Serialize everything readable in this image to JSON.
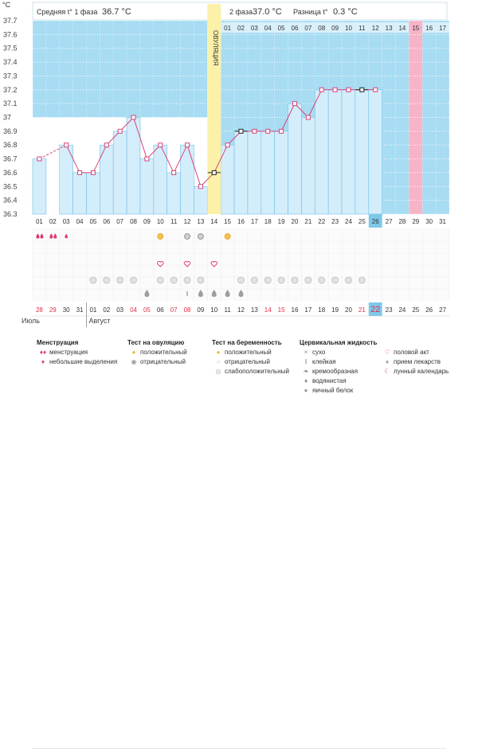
{
  "header": {
    "phase1_label": "Средняя t° 1 фаза",
    "phase1_value": "36.7 °C",
    "phase2_label": "2 фаза",
    "phase2_value": "37.0 °C",
    "diff_label": "Разница t°",
    "diff_value": "0.3 °C"
  },
  "chart_data": {
    "type": "line",
    "title": "",
    "ylabel": "°C",
    "ylim": [
      36.3,
      37.7
    ],
    "yticks": [
      "36.3",
      "36.4",
      "36.5",
      "36.6",
      "36.7",
      "36.8",
      "36.9",
      "37",
      "37.1",
      "37.2",
      "37.3",
      "37.4",
      "37.5",
      "37.6",
      "37.7"
    ],
    "ovulation_label": "ОВУЛЯЦИЯ",
    "ovulation_index": 13,
    "phase2_top_days": [
      "01",
      "02",
      "03",
      "04",
      "05",
      "06",
      "07",
      "08",
      "09",
      "10",
      "11",
      "12",
      "13",
      "14",
      "15",
      "16",
      "17"
    ],
    "highlight_top_index": 14,
    "cycle_days": [
      "01",
      "02",
      "03",
      "04",
      "05",
      "06",
      "07",
      "08",
      "09",
      "10",
      "11",
      "12",
      "13",
      "14",
      "15",
      "16",
      "17",
      "18",
      "19",
      "20",
      "21",
      "22",
      "23",
      "24",
      "25",
      "26",
      "27",
      "28",
      "29",
      "30",
      "31"
    ],
    "today_index": 25,
    "temperatures": [
      36.7,
      null,
      36.8,
      36.6,
      36.6,
      36.8,
      36.9,
      37.0,
      36.7,
      36.8,
      36.6,
      36.8,
      36.5,
      36.6,
      36.8,
      36.9,
      36.9,
      36.9,
      36.9,
      37.1,
      37.0,
      37.2,
      37.2,
      37.2,
      37.2,
      37.2,
      null,
      null,
      null,
      null,
      null
    ],
    "coverline_points": [
      13,
      15,
      24
    ],
    "dates": [
      "28",
      "29",
      "30",
      "31",
      "01",
      "02",
      "03",
      "04",
      "05",
      "06",
      "07",
      "08",
      "09",
      "10",
      "11",
      "12",
      "13",
      "14",
      "15",
      "16",
      "17",
      "18",
      "19",
      "20",
      "21",
      "22",
      "23",
      "24",
      "25",
      "26",
      "27"
    ],
    "red_dates": [
      0,
      1,
      7,
      8,
      10,
      11,
      17,
      18,
      24,
      25
    ],
    "today_date_index": 25,
    "month_july": "Июль",
    "month_august": "Август",
    "month_july_at": 0,
    "month_august_at": 4,
    "menstruation": [
      2,
      2,
      1,
      0,
      0,
      0,
      0,
      0,
      0,
      0,
      0,
      0,
      0,
      0,
      0,
      0,
      0,
      0,
      0,
      0,
      0,
      0,
      0,
      0,
      0,
      0,
      0,
      0,
      0,
      0,
      0
    ],
    "ovulation_test": [
      0,
      0,
      0,
      0,
      0,
      0,
      0,
      0,
      0,
      1,
      0,
      2,
      2,
      0,
      1,
      0,
      0,
      0,
      0,
      0,
      0,
      0,
      0,
      0,
      0,
      0,
      0,
      0,
      0,
      0,
      0
    ],
    "intercourse": [
      0,
      0,
      0,
      0,
      0,
      0,
      0,
      0,
      0,
      1,
      0,
      1,
      0,
      1,
      0,
      0,
      0,
      0,
      0,
      0,
      0,
      0,
      0,
      0,
      0,
      0,
      0,
      0,
      0,
      0,
      0
    ],
    "medication": [
      0,
      0,
      0,
      0,
      1,
      1,
      1,
      1,
      0,
      1,
      1,
      1,
      1,
      0,
      0,
      1,
      1,
      1,
      1,
      1,
      1,
      1,
      1,
      1,
      1,
      0,
      0,
      0,
      0,
      0,
      0
    ],
    "cervical": [
      0,
      0,
      0,
      0,
      0,
      0,
      0,
      0,
      1,
      0,
      0,
      2,
      1,
      1,
      1,
      1,
      0,
      0,
      0,
      0,
      0,
      0,
      0,
      0,
      0,
      0,
      0,
      0,
      0,
      0,
      0
    ]
  },
  "legend": {
    "menstruation": {
      "title": "Менструация",
      "items": [
        "менструация",
        "небольшие выделения"
      ]
    },
    "ovulation_test": {
      "title": "Тест на овуляцию",
      "items": [
        "положительный",
        "отрицательный"
      ]
    },
    "pregnancy_test": {
      "title": "Тест на беременность",
      "items": [
        "положительный",
        "отрицательный",
        "слабоположительный"
      ]
    },
    "cervical": {
      "title": "Цервикальная жидкость",
      "items": [
        "сухо",
        "клейкая",
        "кремообразная",
        "водянистая",
        "яичный белок"
      ]
    },
    "other": {
      "items": [
        "половой акт",
        "прием лекарств",
        "лунный календарь"
      ]
    }
  },
  "colors": {
    "blue_bg": "#a7dcf3",
    "bar_fill": "#d4edfb",
    "bar_stroke": "#6fc0e6",
    "line": "#d7457a",
    "ovulation": "#fbf1a9",
    "pink_day": "#f6b4c8",
    "today": "#7cc9ea",
    "red_text": "#e0304a"
  }
}
